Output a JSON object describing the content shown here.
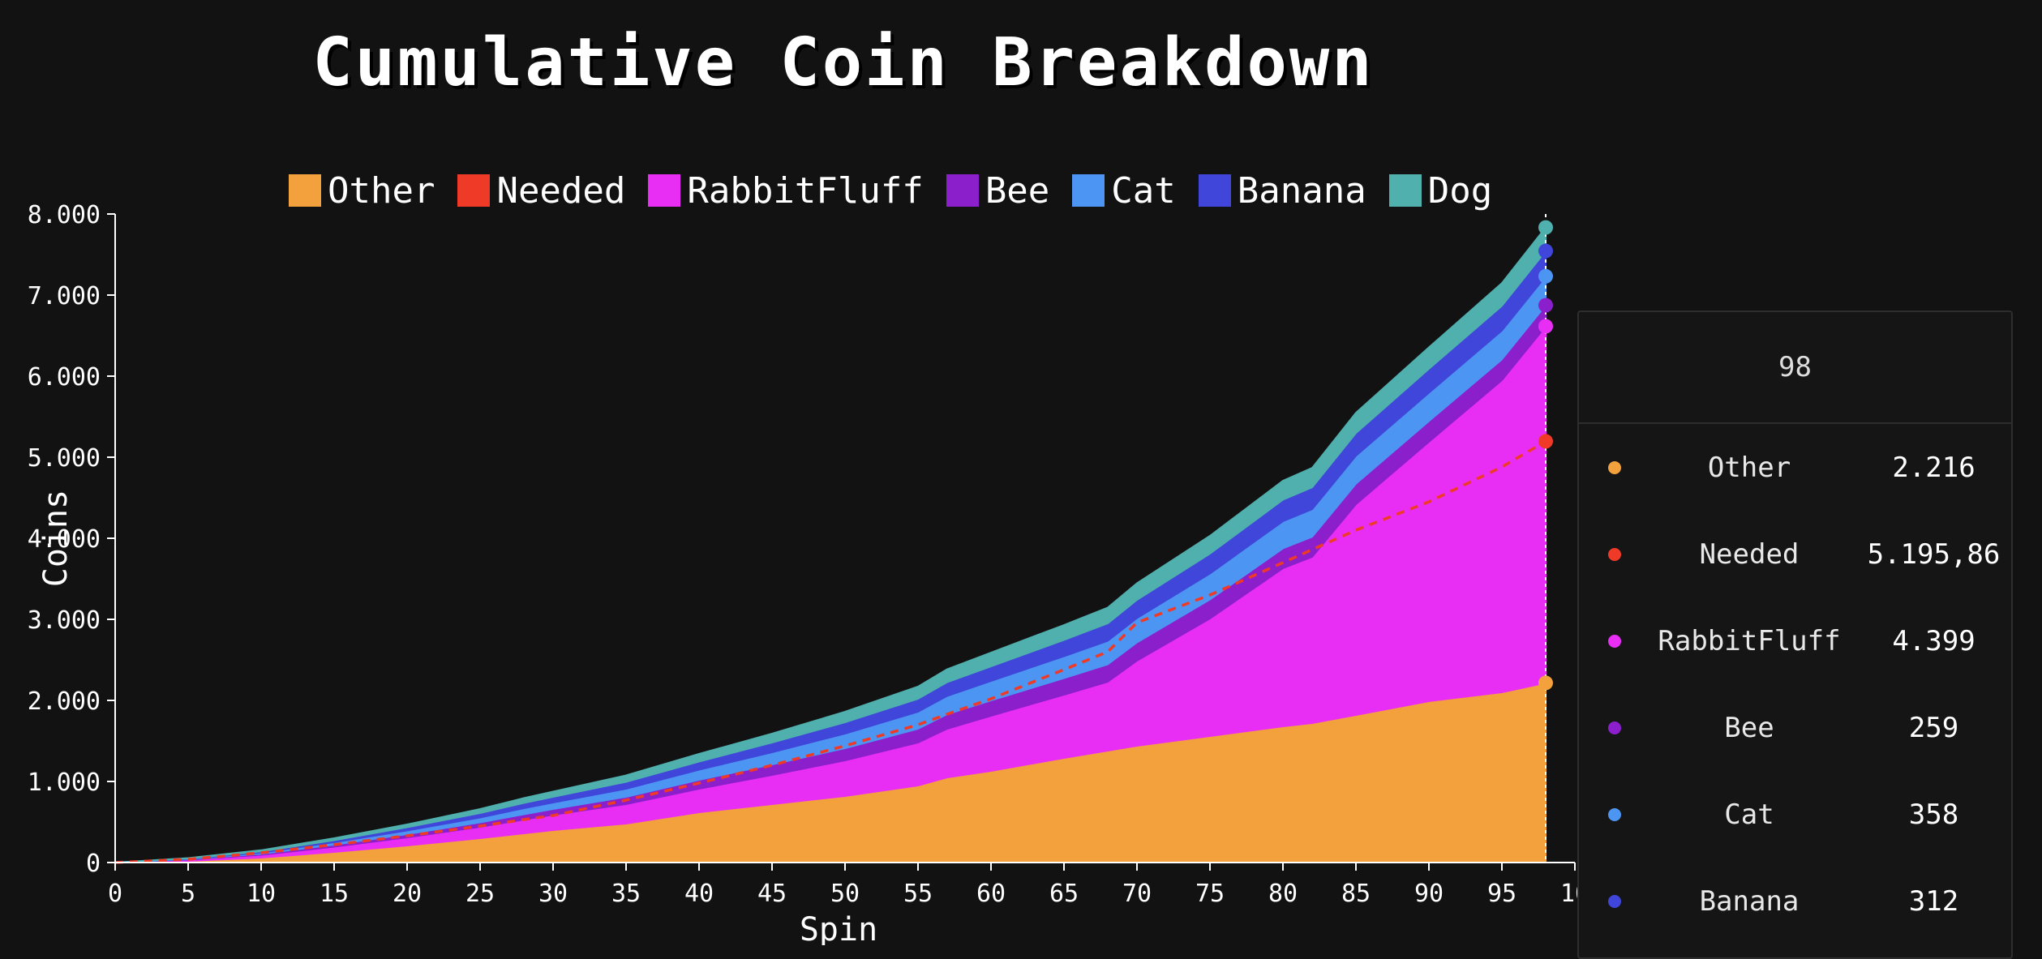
{
  "chart_data": {
    "type": "area",
    "title": "Cumulative Coin Breakdown",
    "xlabel": "Spin",
    "ylabel": "Coins",
    "xlim": [
      0,
      100
    ],
    "ylim": [
      0,
      8000
    ],
    "x_ticks": [
      "0",
      "5",
      "10",
      "15",
      "20",
      "25",
      "30",
      "35",
      "40",
      "45",
      "50",
      "55",
      "60",
      "65",
      "70",
      "75",
      "80",
      "85",
      "90",
      "95",
      "10"
    ],
    "y_ticks": [
      "0",
      "1.000",
      "2.000",
      "3.000",
      "4.000",
      "5.000",
      "6.000",
      "7.000",
      "8.000"
    ],
    "x": [
      0,
      5,
      10,
      15,
      20,
      25,
      28,
      30,
      35,
      40,
      45,
      50,
      55,
      57,
      60,
      65,
      68,
      70,
      75,
      80,
      82,
      85,
      90,
      95,
      98
    ],
    "stacked": true,
    "legend_position": "top",
    "series": [
      {
        "name": "Other",
        "color": "#f2a13c",
        "values": [
          0,
          20,
          60,
          130,
          210,
          300,
          360,
          400,
          480,
          620,
          720,
          820,
          950,
          1050,
          1130,
          1290,
          1380,
          1440,
          1560,
          1680,
          1720,
          1820,
          1990,
          2100,
          2216
        ]
      },
      {
        "name": "RabbitFluff",
        "color": "#e82ef5",
        "values": [
          0,
          15,
          35,
          65,
          100,
          140,
          170,
          190,
          240,
          290,
          360,
          440,
          530,
          600,
          680,
          780,
          850,
          1050,
          1450,
          1950,
          2050,
          2600,
          3200,
          3850,
          4399
        ]
      },
      {
        "name": "Bee",
        "color": "#8b1fcc",
        "values": [
          0,
          5,
          12,
          25,
          40,
          55,
          65,
          70,
          90,
          110,
          130,
          150,
          170,
          180,
          190,
          205,
          215,
          225,
          235,
          245,
          248,
          252,
          255,
          257,
          259
        ]
      },
      {
        "name": "Cat",
        "color": "#4d95f2",
        "values": [
          0,
          5,
          15,
          30,
          45,
          60,
          75,
          80,
          100,
          125,
          150,
          180,
          210,
          225,
          240,
          270,
          290,
          300,
          320,
          335,
          340,
          345,
          350,
          355,
          358
        ]
      },
      {
        "name": "Banana",
        "color": "#3f46d9",
        "values": [
          0,
          5,
          15,
          25,
          40,
          55,
          65,
          70,
          85,
          100,
          120,
          140,
          160,
          170,
          180,
          200,
          215,
          225,
          245,
          265,
          270,
          280,
          295,
          305,
          312
        ]
      },
      {
        "name": "Dog",
        "color": "#4fb0ae",
        "values": [
          0,
          5,
          15,
          25,
          35,
          50,
          60,
          65,
          80,
          95,
          110,
          130,
          150,
          160,
          170,
          185,
          195,
          205,
          220,
          235,
          240,
          250,
          265,
          280,
          290
        ]
      }
    ],
    "line_series": {
      "name": "Needed",
      "color": "#f03a28",
      "style": "dashed",
      "values": [
        0,
        40,
        120,
        220,
        330,
        450,
        530,
        580,
        770,
        980,
        1200,
        1440,
        1700,
        1830,
        2020,
        2380,
        2600,
        2960,
        3300,
        3700,
        3860,
        4100,
        4450,
        4880,
        5195.86
      ]
    },
    "legend_order": [
      "Other",
      "Needed",
      "RabbitFluff",
      "Bee",
      "Cat",
      "Banana",
      "Dog"
    ],
    "hover_x": 98
  },
  "tooltip": {
    "header": "98",
    "rows": [
      {
        "name": "Other",
        "value": "2.216",
        "color": "#f2a13c"
      },
      {
        "name": "Needed",
        "value": "5.195,86",
        "color": "#f03a28"
      },
      {
        "name": "RabbitFluff",
        "value": "4.399",
        "color": "#e82ef5"
      },
      {
        "name": "Bee",
        "value": "259",
        "color": "#8b1fcc"
      },
      {
        "name": "Cat",
        "value": "358",
        "color": "#4d95f2"
      },
      {
        "name": "Banana",
        "value": "312",
        "color": "#3f46d9"
      }
    ]
  }
}
